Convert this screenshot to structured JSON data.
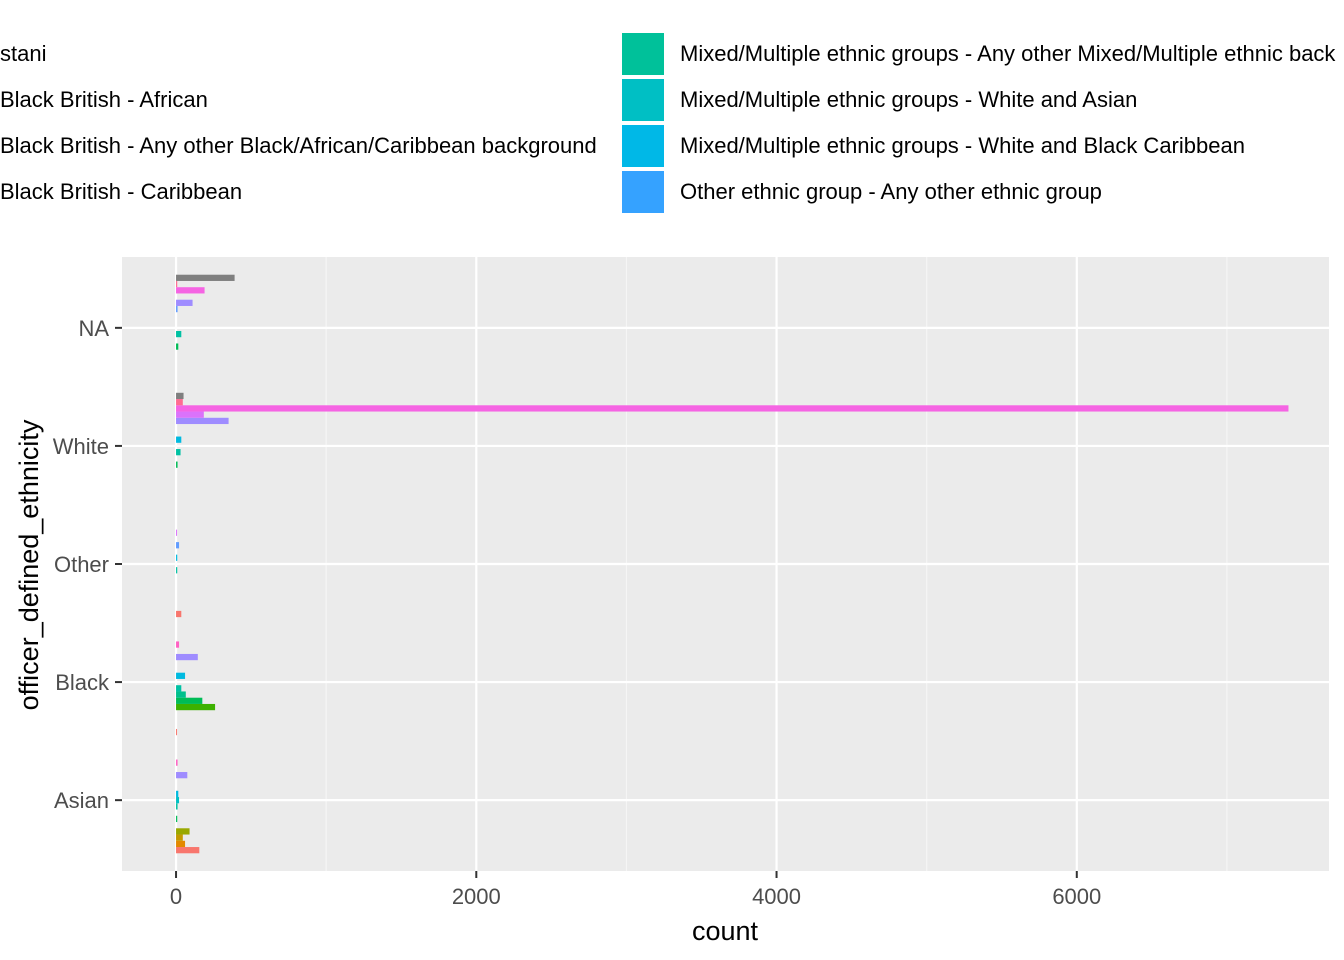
{
  "legend": {
    "items": [
      {
        "label": "stani",
        "color": "#F8766D"
      },
      {
        "label": "Black British - African",
        "color": "#7CAE00"
      },
      {
        "label": "Black British - Any other Black/African/Caribbean background",
        "color": "#00A9FF"
      },
      {
        "label": "Black British - Caribbean",
        "color": "#00BE67"
      },
      {
        "label": "Mixed/Multiple ethnic groups - Any other Mixed/Multiple ethnic back",
        "color": "#00C19A"
      },
      {
        "label": "Mixed/Multiple ethnic groups - White and Asian",
        "color": "#00BFC4"
      },
      {
        "label": "Mixed/Multiple ethnic groups - White and Black Caribbean",
        "color": "#00B8E7"
      },
      {
        "label": "Other ethnic group - Any other ethnic group",
        "color": "#35A2FF"
      }
    ]
  },
  "chart_data": {
    "type": "bar",
    "orientation": "horizontal",
    "position": "dodge",
    "xlabel": "count",
    "ylabel": "officer_defined_ethnicity",
    "xlim": [
      -360,
      7680
    ],
    "x_ticks": [
      0,
      2000,
      4000,
      6000
    ],
    "grid": true,
    "categories": [
      "Asian",
      "Black",
      "Other",
      "White",
      "NA"
    ],
    "series_count": 16,
    "bars": [
      {
        "category": "Asian",
        "series_index": 0,
        "value": 155,
        "color": "#F8766D"
      },
      {
        "category": "Asian",
        "series_index": 1,
        "value": 60,
        "color": "#E38900"
      },
      {
        "category": "Asian",
        "series_index": 2,
        "value": 45,
        "color": "#C49A00"
      },
      {
        "category": "Asian",
        "series_index": 3,
        "value": 90,
        "color": "#99A800"
      },
      {
        "category": "Asian",
        "series_index": 5,
        "value": 8,
        "color": "#00BC56"
      },
      {
        "category": "Asian",
        "series_index": 7,
        "value": 10,
        "color": "#00C1A3"
      },
      {
        "category": "Asian",
        "series_index": 8,
        "value": 20,
        "color": "#00BFC4"
      },
      {
        "category": "Asian",
        "series_index": 9,
        "value": 15,
        "color": "#00BAE0"
      },
      {
        "category": "Asian",
        "series_index": 12,
        "value": 75,
        "color": "#9F8CFF"
      },
      {
        "category": "Asian",
        "series_index": 14,
        "value": 10,
        "color": "#FF61C3"
      },
      {
        "category": "Black",
        "series_index": 0,
        "value": 5,
        "color": "#F8766D"
      },
      {
        "category": "Black",
        "series_index": 4,
        "value": 260,
        "color": "#3DB100"
      },
      {
        "category": "Black",
        "series_index": 5,
        "value": 175,
        "color": "#00BC56"
      },
      {
        "category": "Black",
        "series_index": 6,
        "value": 65,
        "color": "#00C08B"
      },
      {
        "category": "Black",
        "series_index": 7,
        "value": 35,
        "color": "#00C1A3"
      },
      {
        "category": "Black",
        "series_index": 9,
        "value": 60,
        "color": "#00BAE0"
      },
      {
        "category": "Black",
        "series_index": 12,
        "value": 145,
        "color": "#9F8CFF"
      },
      {
        "category": "Black",
        "series_index": 14,
        "value": 20,
        "color": "#FF61C3"
      },
      {
        "category": "Other",
        "series_index": 0,
        "value": 35,
        "color": "#F8766D"
      },
      {
        "category": "Other",
        "series_index": 7,
        "value": 8,
        "color": "#00C1A3"
      },
      {
        "category": "Other",
        "series_index": 9,
        "value": 8,
        "color": "#00BAE0"
      },
      {
        "category": "Other",
        "series_index": 11,
        "value": 20,
        "color": "#619CFF"
      },
      {
        "category": "Other",
        "series_index": 13,
        "value": 5,
        "color": "#DB72FB"
      },
      {
        "category": "White",
        "series_index": 5,
        "value": 10,
        "color": "#00BC56"
      },
      {
        "category": "White",
        "series_index": 7,
        "value": 30,
        "color": "#00C1A3"
      },
      {
        "category": "White",
        "series_index": 9,
        "value": 35,
        "color": "#00BAE0"
      },
      {
        "category": "White",
        "series_index": 12,
        "value": 350,
        "color": "#9F8CFF"
      },
      {
        "category": "White",
        "series_index": 13,
        "value": 185,
        "color": "#DB72FB"
      },
      {
        "category": "White",
        "series_index": 14,
        "value": 7410,
        "color": "#F564E3"
      },
      {
        "category": "White",
        "series_index": 15,
        "value": 45,
        "color": "#FF6C91"
      },
      {
        "category": "White",
        "series_index": 16,
        "value": 50,
        "color": "#7F7F7F"
      },
      {
        "category": "NA",
        "series_index": 5,
        "value": 15,
        "color": "#00BC56"
      },
      {
        "category": "NA",
        "series_index": 7,
        "value": 35,
        "color": "#00C1A3"
      },
      {
        "category": "NA",
        "series_index": 11,
        "value": 10,
        "color": "#619CFF"
      },
      {
        "category": "NA",
        "series_index": 12,
        "value": 110,
        "color": "#9F8CFF"
      },
      {
        "category": "NA",
        "series_index": 14,
        "value": 190,
        "color": "#F564E3"
      },
      {
        "category": "NA",
        "series_index": 15,
        "value": 8,
        "color": "#FF6C91"
      },
      {
        "category": "NA",
        "series_index": 16,
        "value": 390,
        "color": "#7F7F7F"
      }
    ]
  }
}
